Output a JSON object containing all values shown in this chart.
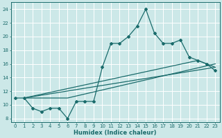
{
  "xlabel": "Humidex (Indice chaleur)",
  "xlim": [
    -0.5,
    23.5
  ],
  "ylim": [
    7.5,
    25
  ],
  "yticks": [
    8,
    10,
    12,
    14,
    16,
    18,
    20,
    22,
    24
  ],
  "xticks": [
    0,
    1,
    2,
    3,
    4,
    5,
    6,
    7,
    8,
    9,
    10,
    11,
    12,
    13,
    14,
    15,
    16,
    17,
    18,
    19,
    20,
    21,
    22,
    23
  ],
  "bg_color": "#cce8e8",
  "line_color": "#1a6b6b",
  "grid_color": "#ffffff",
  "line1_x": [
    0,
    1,
    2,
    3,
    4,
    5,
    6,
    7,
    8,
    9,
    10,
    11,
    12,
    13,
    14,
    15,
    16,
    17,
    18,
    19,
    20,
    21,
    22,
    23
  ],
  "line1_y": [
    11,
    11,
    9.5,
    9,
    9.5,
    9.5,
    8,
    10.5,
    10.5,
    10.5,
    15.5,
    19,
    19,
    20,
    21.5,
    24,
    20.5,
    19,
    19,
    19.5,
    17,
    16.5,
    16,
    15
  ],
  "line2_x": [
    1,
    21,
    22,
    23
  ],
  "line2_y": [
    11,
    16.5,
    16,
    15.5
  ],
  "line3_x": [
    1,
    23
  ],
  "line3_y": [
    11,
    15.5
  ],
  "line4_x": [
    1,
    5,
    6,
    23
  ],
  "line4_y": [
    11,
    11,
    11,
    16
  ]
}
